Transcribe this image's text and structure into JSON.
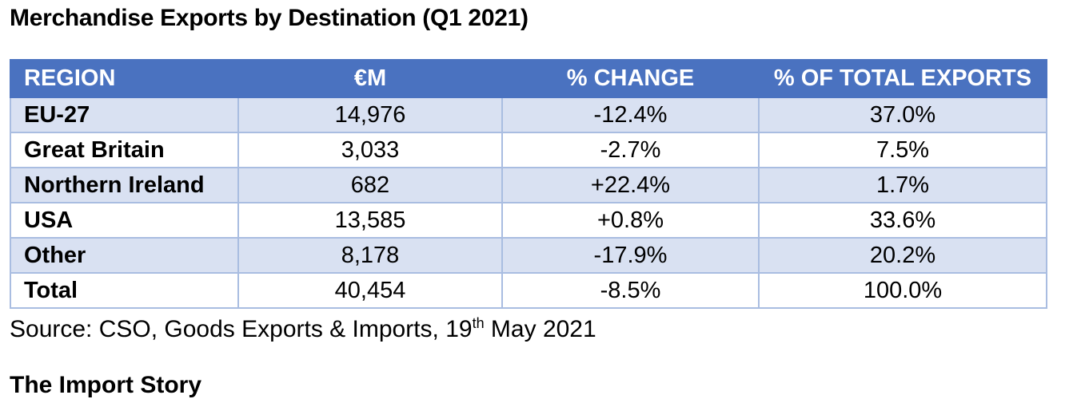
{
  "title": "Merchandise Exports by Destination (Q1 2021)",
  "table": {
    "headers": {
      "region": "REGION",
      "eur_m": "€M",
      "pct_change": "% CHANGE",
      "pct_total": "% OF TOTAL EXPORTS"
    },
    "rows": [
      {
        "region": "EU-27",
        "eur_m": "14,976",
        "pct_change": "-12.4%",
        "pct_total": "37.0%"
      },
      {
        "region": "Great Britain",
        "eur_m": "3,033",
        "pct_change": "-2.7%",
        "pct_total": "7.5%"
      },
      {
        "region": "Northern Ireland",
        "eur_m": "682",
        "pct_change": "+22.4%",
        "pct_total": "1.7%"
      },
      {
        "region": "USA",
        "eur_m": "13,585",
        "pct_change": "+0.8%",
        "pct_total": "33.6%"
      },
      {
        "region": "Other",
        "eur_m": "8,178",
        "pct_change": "-17.9%",
        "pct_total": "20.2%"
      },
      {
        "region": "Total",
        "eur_m": "40,454",
        "pct_change": "-8.5%",
        "pct_total": "100.0%"
      }
    ]
  },
  "source": {
    "prefix": "Source: CSO, Goods Exports & Imports, 19",
    "superscript": "th",
    "suffix": " May 2021"
  },
  "next_heading": "The Import Story",
  "colors": {
    "header_bg": "#4a72c0",
    "header_text": "#ffffff",
    "shaded_row": "#d9e1f2",
    "border": "#a9bde1"
  }
}
